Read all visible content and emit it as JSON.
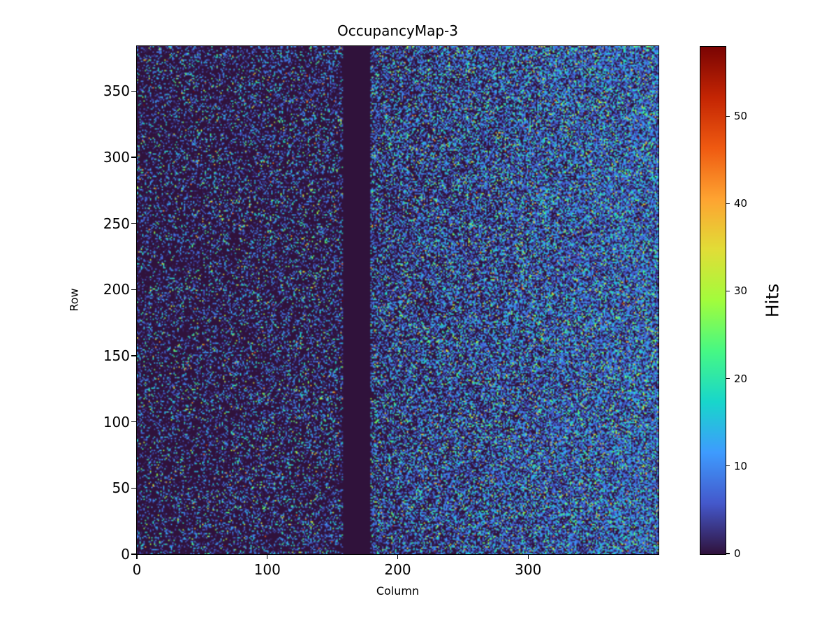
{
  "figure": {
    "background_color": "#ffffff",
    "text_color": "#000000"
  },
  "chart_data": {
    "type": "heatmap",
    "title": "OccupancyMap-3",
    "xlabel": "Column",
    "ylabel": "Row",
    "colorbar_label": "Hits",
    "n_cols": 400,
    "n_rows": 384,
    "x_range": [
      0,
      400
    ],
    "y_range": [
      0,
      384
    ],
    "x_ticks": [
      0,
      100,
      200,
      300
    ],
    "y_ticks": [
      0,
      50,
      100,
      150,
      200,
      250,
      300,
      350
    ],
    "colorbar_ticks": [
      0,
      10,
      20,
      30,
      40,
      50
    ],
    "vmin": 0,
    "vmax": 58,
    "grid": false,
    "legend": false,
    "colormap": "turbo",
    "colormap_stops": [
      [
        0.0,
        "#30123b"
      ],
      [
        0.1,
        "#4458cb"
      ],
      [
        0.2,
        "#3e9bfe"
      ],
      [
        0.3,
        "#18d6cb"
      ],
      [
        0.4,
        "#46f884"
      ],
      [
        0.5,
        "#a2fc3c"
      ],
      [
        0.6,
        "#e1dd37"
      ],
      [
        0.7,
        "#fea331"
      ],
      [
        0.8,
        "#ef5a11"
      ],
      [
        0.9,
        "#c42503"
      ],
      [
        1.0,
        "#7a0403"
      ]
    ],
    "dead_column_range": [
      158,
      178
    ],
    "noise_model": {
      "seed": 1337,
      "description": "Random pixel-hit occupancy map: sparse hits on dark (0-hit) background, hit density increasing from left to right, fully dead vertical column band; most hit values 4-25 (blue/cyan/green), rare 30+ (yellow/orange/red)",
      "left_region_hit_probability": [
        0.2,
        0.27
      ],
      "right_region_hit_probability": [
        0.42,
        0.72
      ],
      "hit_value_offset": 4,
      "hit_value_exp_mean": 8,
      "background_speckle_probability": 0.08,
      "background_speckle_values": [
        1,
        2
      ]
    }
  }
}
